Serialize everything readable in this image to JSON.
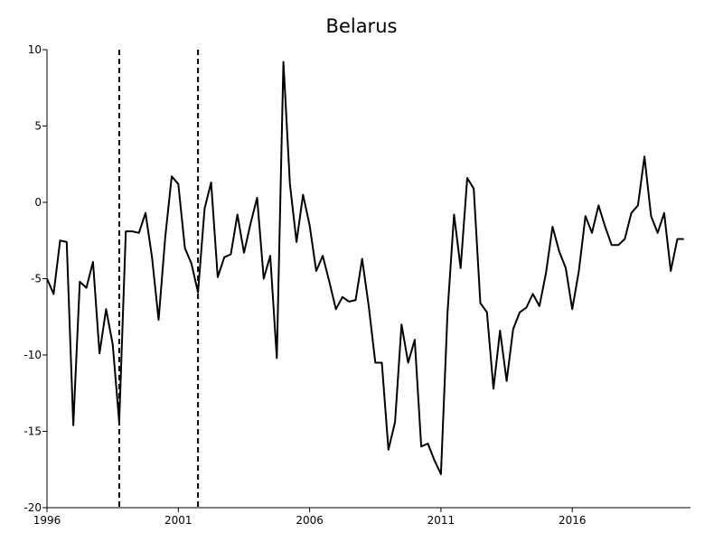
{
  "chart_data": {
    "type": "line",
    "title": "Belarus",
    "xlabel": "",
    "ylabel": "",
    "xlim": [
      1996,
      2020.5
    ],
    "ylim": [
      -20,
      10
    ],
    "x_ticks": [
      1996,
      2001,
      2006,
      2011,
      2016
    ],
    "y_ticks": [
      10,
      5,
      0,
      -5,
      -10,
      -15,
      -20
    ],
    "grid": false,
    "color": "#000000",
    "vlines": [
      1998.75,
      2001.75
    ],
    "series": [
      {
        "x": [
          1996.0,
          1996.25,
          1996.5,
          1996.75,
          1997.0,
          1997.25,
          1997.5,
          1997.75,
          1998.0,
          1998.25,
          1998.5,
          1998.75,
          1999.0,
          1999.25,
          1999.5,
          1999.75,
          2000.0,
          2000.25,
          2000.5,
          2000.75,
          2001.0,
          2001.25,
          2001.5,
          2001.75,
          2002.0,
          2002.25,
          2002.5,
          2002.75,
          2003.0,
          2003.25,
          2003.5,
          2003.75,
          2004.0,
          2004.25,
          2004.5,
          2004.75,
          2005.0,
          2005.25,
          2005.5,
          2005.75,
          2006.0,
          2006.25,
          2006.5,
          2006.75,
          2007.0,
          2007.25,
          2007.5,
          2007.75,
          2008.0,
          2008.25,
          2008.5,
          2008.75,
          2009.0,
          2009.25,
          2009.5,
          2009.75,
          2010.0,
          2010.25,
          2010.5,
          2010.75,
          2011.0,
          2011.25,
          2011.5,
          2011.75,
          2012.0,
          2012.25,
          2012.5,
          2012.75,
          2013.0,
          2013.25,
          2013.5,
          2013.75,
          2014.0,
          2014.25,
          2014.5,
          2014.75,
          2015.0,
          2015.25,
          2015.5,
          2015.75,
          2016.0,
          2016.25,
          2016.5,
          2016.75,
          2017.0,
          2017.25,
          2017.5,
          2017.75,
          2018.0,
          2018.25,
          2018.5,
          2018.75,
          2019.0,
          2019.25,
          2019.5,
          2019.75,
          2020.0,
          2020.25
        ],
        "values": [
          -5.0,
          -6.0,
          -2.5,
          -2.6,
          -14.6,
          -5.2,
          -5.6,
          -3.9,
          -9.9,
          -7.0,
          -9.3,
          -14.4,
          -1.9,
          -1.9,
          -2.0,
          -0.7,
          -3.6,
          -7.7,
          -2.3,
          1.7,
          1.2,
          -3.0,
          -4.0,
          -5.9,
          -0.4,
          1.3,
          -4.9,
          -3.6,
          -3.4,
          -0.8,
          -3.3,
          -1.4,
          0.3,
          -5.0,
          -3.5,
          -10.2,
          9.2,
          1.2,
          -2.6,
          0.5,
          -1.5,
          -4.5,
          -3.5,
          -5.2,
          -7.0,
          -6.2,
          -6.5,
          -6.4,
          -3.7,
          -6.8,
          -10.5,
          -10.5,
          -16.2,
          -14.4,
          -8.0,
          -10.5,
          -9.0,
          -16.0,
          -15.8,
          -16.9,
          -17.8,
          -7.2,
          -0.8,
          -4.3,
          1.6,
          0.9,
          -6.6,
          -7.2,
          -12.2,
          -8.4,
          -11.7,
          -8.3,
          -7.2,
          -6.9,
          -6.0,
          -6.8,
          -4.6,
          -1.6,
          -3.2,
          -4.3,
          -7.0,
          -4.5,
          -0.9,
          -2.0,
          -0.2,
          -1.6,
          -2.8,
          -2.8,
          -2.4,
          -0.7,
          -0.2,
          3.0,
          -0.9,
          -2.0,
          -0.7,
          -4.5,
          -2.4,
          -2.4
        ]
      }
    ]
  }
}
